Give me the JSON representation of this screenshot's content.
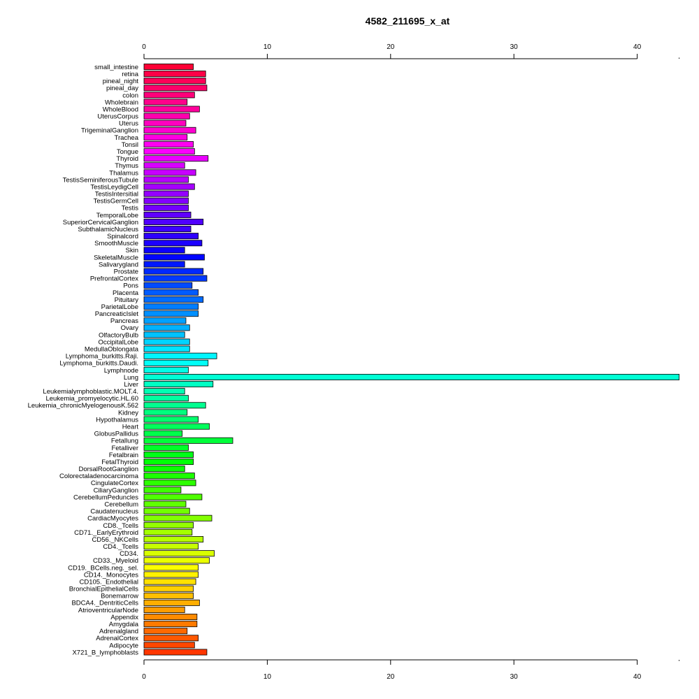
{
  "chart_data": {
    "type": "bar",
    "orientation": "horizontal",
    "title": "4582_211695_x_at",
    "xlabel": "",
    "ylabel": "",
    "xlim": [
      0,
      43.4
    ],
    "xticks": [
      0,
      10,
      20,
      30,
      40
    ],
    "axes": [
      "top",
      "bottom"
    ],
    "grid": false,
    "categories": [
      "small_intestine",
      "retina",
      "pineal_night",
      "pineal_day",
      "colon",
      "Wholebrain",
      "WholeBlood",
      "UterusCorpus",
      "Uterus",
      "TrigeminalGanglion",
      "Trachea",
      "Tonsil",
      "Tongue",
      "Thyroid",
      "Thymus",
      "Thalamus",
      "TestisSeminiferousTubule",
      "TestisLeydigCell",
      "TestisIntersitial",
      "TestisGermCell",
      "Testis",
      "TemporalLobe",
      "SuperiorCervicalGanglion",
      "SubthalamicNucleus",
      "Spinalcord",
      "SmoothMuscle",
      "Skin",
      "SkeletalMuscle",
      "Salivarygland",
      "Prostate",
      "PrefrontalCortex",
      "Pons",
      "Placenta",
      "Pituitary",
      "ParietalLobe",
      "PancreaticIslet",
      "Pancreas",
      "Ovary",
      "OlfactoryBulb",
      "OccipitalLobe",
      "MedullaOblongata",
      "Lymphoma_burkitts.Raji.",
      "Lymphoma_burkitts.Daudi.",
      "Lymphnode",
      "Lung",
      "Liver",
      "Leukemialymphoblastic.MOLT.4.",
      "Leukemia_promyelocytic.HL.60",
      "Leukemia_chronicMyelogenousK.562",
      "Kidney",
      "Hypothalamus",
      "Heart",
      "GlobusPallidus",
      "Fetallung",
      "Fetalliver",
      "Fetalbrain",
      "FetalThyroid",
      "DorsalRootGanglion",
      "Colorectaladenocarcinoma",
      "CingulateCortex",
      "CiliaryGanglion",
      "CerebellumPeduncles",
      "Cerebellum",
      "Caudatenucleus",
      "CardiacMyocytes",
      "CD8._Tcells",
      "CD71._EarlyErythroid",
      "CD56._NKCells",
      "CD4._Tcells",
      "CD34.",
      "CD33._Myeloid",
      "CD19._BCells.neg._sel.",
      "CD14._Monocytes",
      "CD105._Endothelial",
      "BronchialEpithelialCells",
      "Bonemarrow",
      "BDCA4._DentriticCells",
      "AtrioventricularNode",
      "Appendix",
      "Amygdala",
      "Adrenalgland",
      "AdrenalCortex",
      "Adipocyte",
      "X721_B_lymphoblasts"
    ],
    "values": [
      4.0,
      5.0,
      5.0,
      5.1,
      4.1,
      3.5,
      4.5,
      3.7,
      3.4,
      4.2,
      3.5,
      4.0,
      4.1,
      5.2,
      3.3,
      4.2,
      3.6,
      4.1,
      3.6,
      3.6,
      3.6,
      3.8,
      4.8,
      3.8,
      4.4,
      4.7,
      3.3,
      4.9,
      3.3,
      4.8,
      5.1,
      3.9,
      4.4,
      4.8,
      4.4,
      4.4,
      3.4,
      3.7,
      3.3,
      3.7,
      3.7,
      5.9,
      5.2,
      3.6,
      43.4,
      5.6,
      3.3,
      3.6,
      5.0,
      3.5,
      4.4,
      5.3,
      3.1,
      7.2,
      3.6,
      4.0,
      4.0,
      3.3,
      4.1,
      4.2,
      3.0,
      4.7,
      3.4,
      3.7,
      5.5,
      4.0,
      3.9,
      4.8,
      4.4,
      5.7,
      5.3,
      4.4,
      4.4,
      4.2,
      4.0,
      4.0,
      4.5,
      3.3,
      4.3,
      4.3,
      3.5,
      4.4,
      4.1,
      5.1
    ]
  }
}
